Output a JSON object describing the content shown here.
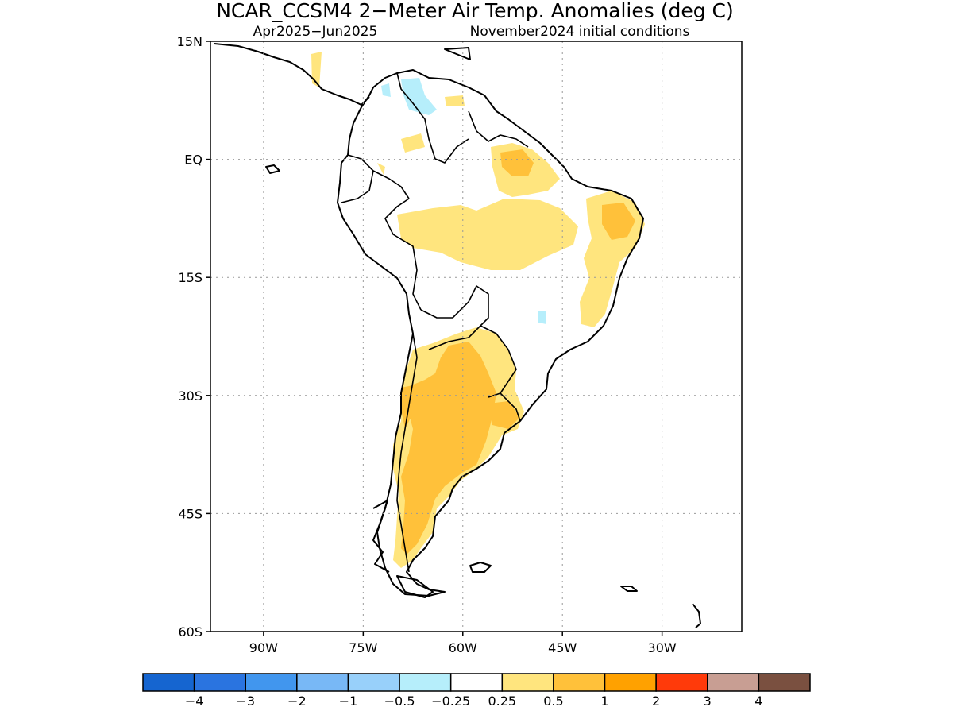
{
  "title": "NCAR_CCSM4 2−Meter Air Temp. Anomalies (deg C)",
  "subtitle_left": "Apr2025−Jun2025",
  "subtitle_right": "November2024 initial conditions",
  "map": {
    "lon_range": [
      -98,
      -18
    ],
    "lat_range": [
      -60,
      15
    ],
    "lat_ticks": [
      {
        "value": 15,
        "label": "15N"
      },
      {
        "value": 0,
        "label": "EQ"
      },
      {
        "value": -15,
        "label": "15S"
      },
      {
        "value": -30,
        "label": "30S"
      },
      {
        "value": -45,
        "label": "45S"
      },
      {
        "value": -60,
        "label": "60S"
      }
    ],
    "lon_ticks": [
      {
        "value": -90,
        "label": "90W"
      },
      {
        "value": -75,
        "label": "75W"
      },
      {
        "value": -60,
        "label": "60W"
      },
      {
        "value": -45,
        "label": "45W"
      },
      {
        "value": -30,
        "label": "30W"
      }
    ],
    "grid": true
  },
  "colorbar": {
    "colors": [
      "#1565d0",
      "#2a74e0",
      "#4196ee",
      "#78b8f6",
      "#98d0fa",
      "#b6eefb",
      "#ffffff",
      "#ffe57e",
      "#ffc13a",
      "#ffa100",
      "#ff3a0a",
      "#c89e93",
      "#7a5040"
    ],
    "labels": [
      "−4",
      "−3",
      "−2",
      "−1",
      "−0.5",
      "−0.25",
      "0.25",
      "0.5",
      "1",
      "2",
      "3",
      "4"
    ]
  }
}
